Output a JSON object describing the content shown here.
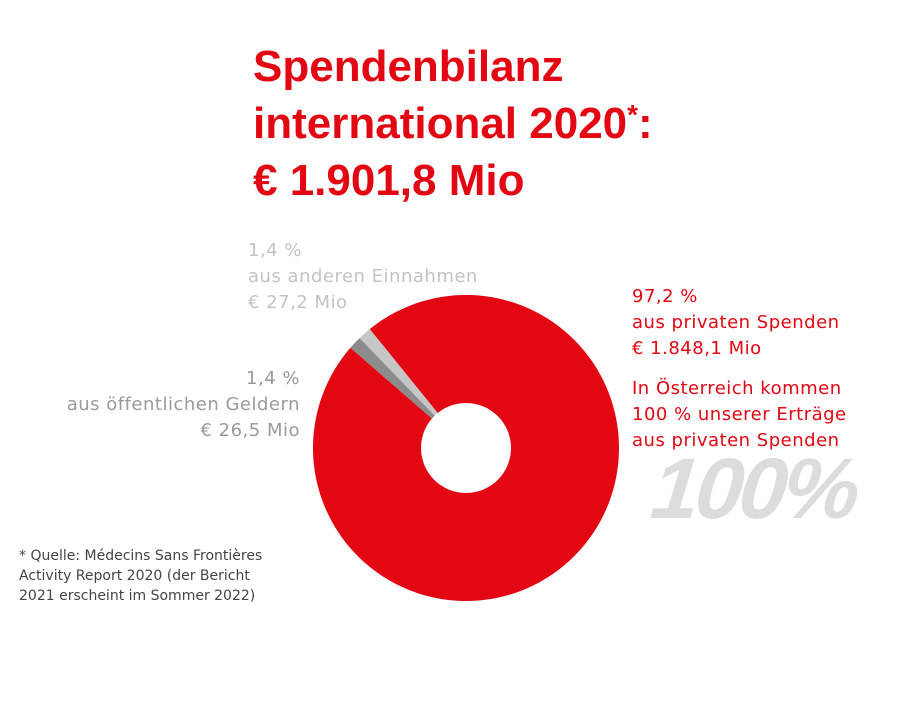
{
  "title": {
    "line1": "Spendenbilanz",
    "line2": "international 2020",
    "asterisk": "*",
    "colon": ":",
    "line3": "€ 1.901,8 Mio"
  },
  "chart_data": {
    "type": "pie",
    "donut": true,
    "slices": [
      {
        "name": "aus privaten Spenden",
        "percent": 97.2,
        "value_label": "€ 1.848,1 Mio",
        "value": 1848.1,
        "color": "#e30613"
      },
      {
        "name": "aus öffentlichen Geldern",
        "percent": 1.4,
        "value_label": "€ 26,5 Mio",
        "value": 26.5,
        "color": "#8c8c8c"
      },
      {
        "name": "aus anderen Einnahmen",
        "percent": 1.4,
        "value_label": "€ 27,2 Mio",
        "value": 27.2,
        "color": "#c6c6c6"
      }
    ]
  },
  "labels": {
    "other": {
      "pct": "1,4 %",
      "name": "aus anderen Einnahmen",
      "value": "€ 27,2 Mio"
    },
    "public": {
      "pct": "1,4 %",
      "name": "aus öffentlichen Geldern",
      "value": "€ 26,5 Mio"
    },
    "private": {
      "pct": "97,2 %",
      "name": "aus privaten Spenden",
      "value": "€ 1.848,1 Mio",
      "note1": "In Österreich kommen",
      "note2": "100 % unserer Erträge",
      "note3": "aus privaten Spenden"
    }
  },
  "watermark": "100%",
  "source": {
    "line1": "* Quelle: Médecins Sans Frontières",
    "line2": "Activity Report 2020 (der Bericht",
    "line3": "2021 erscheint im Sommer 2022)"
  }
}
